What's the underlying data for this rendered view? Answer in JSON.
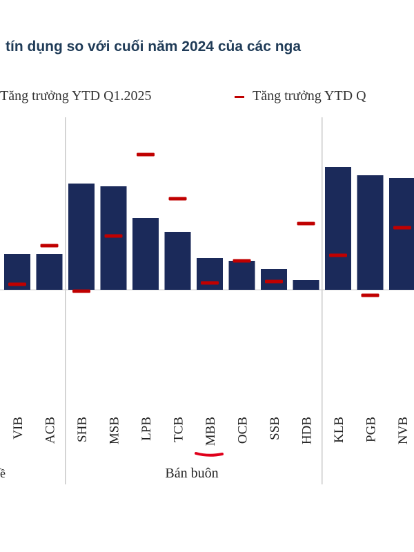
{
  "title": "tín dụng so với cuối năm 2024 của các nga",
  "legend": {
    "series1_label": "Tăng trưởng YTD Q1.2025",
    "series2_label": "Tăng trưởng YTD Q"
  },
  "colors": {
    "bar": "#1b2a5a",
    "marker": "#c00000",
    "title": "#1f3b57",
    "separator": "#c8c8c8",
    "baseline": "#d0d0d0"
  },
  "groups": [
    {
      "label": "ề"
    },
    {
      "label": "Bán buôn"
    }
  ],
  "chart_data": {
    "type": "bar",
    "title": "tín dụng so với cuối năm 2024 của các nga",
    "categories": [
      "VIB",
      "ACB",
      "SHB",
      "MSB",
      "LPB",
      "TCB",
      "MBB",
      "OCB",
      "SSB",
      "HDB",
      "KLB",
      "PGB",
      "NVB"
    ],
    "series": [
      {
        "name": "Tăng trưởng YTD Q1.2025",
        "type": "bar",
        "values": [
          2.6,
          2.6,
          7.7,
          7.5,
          5.2,
          4.2,
          2.3,
          2.1,
          1.5,
          0.7,
          8.9,
          8.3,
          8.1
        ]
      },
      {
        "name": "Tăng trưởng YTD Q",
        "type": "marker",
        "values": [
          0.4,
          3.2,
          -0.1,
          3.9,
          9.8,
          6.6,
          0.5,
          2.1,
          0.6,
          4.8,
          2.5,
          -0.4,
          4.5
        ]
      }
    ],
    "ylim": [
      -8.5,
      12.5
    ],
    "xlabel": "",
    "ylabel": "",
    "grid": false,
    "legend_position": "top"
  }
}
